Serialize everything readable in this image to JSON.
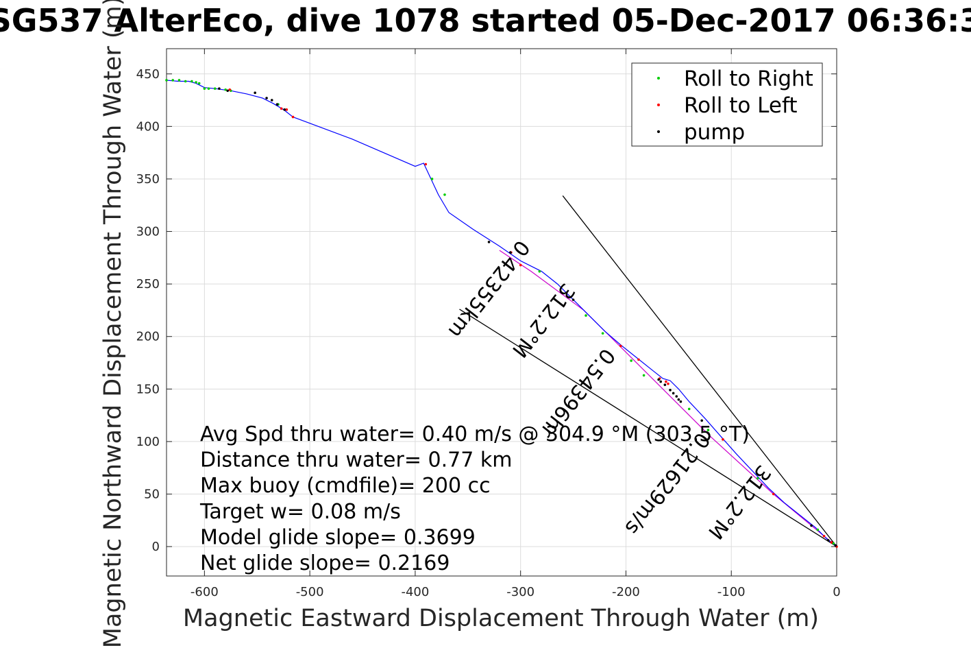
{
  "chart_data": {
    "type": "scatter",
    "title": "SG537 AlterEco, dive 1078 started 05-Dec-2017 06:36:3",
    "xlabel": "Magnetic Eastward Displacement Through Water (m)",
    "ylabel": "Magnetic Northward Displacement Through Water (m)",
    "xlim": [
      -636,
      0
    ],
    "ylim": [
      -28,
      474
    ],
    "xticks": [
      -600,
      -500,
      -400,
      -300,
      -200,
      -100,
      0
    ],
    "yticks": [
      0,
      50,
      100,
      150,
      200,
      250,
      300,
      350,
      400,
      450
    ],
    "xtick_labels": [
      "-600",
      "-500",
      "-400",
      "-300",
      "-200",
      "-100",
      "0"
    ],
    "ytick_labels": [
      "0",
      "50",
      "100",
      "150",
      "200",
      "250",
      "300",
      "350",
      "400",
      "450"
    ],
    "grid": true,
    "legend_position": "top-right",
    "legend": [
      "Roll to Right",
      "Roll to Left",
      "pump"
    ],
    "colors": {
      "track": "#0000ff",
      "roll_right": "#00cc00",
      "roll_left": "#ff0000",
      "pump": "#000000",
      "model_track": "#cc00cc"
    },
    "track": {
      "x": [
        0,
        -10,
        -20,
        -35,
        -50,
        -65,
        -80,
        -95,
        -110,
        -125,
        -140,
        -150,
        -158,
        -165,
        -175,
        -190,
        -205,
        -220,
        -235,
        -250,
        -265,
        -280,
        -300,
        -320,
        -345,
        -368,
        -378,
        -385,
        -392,
        -400,
        -460,
        -516,
        -525,
        -535,
        -545,
        -560,
        -575,
        -590,
        -600,
        -608,
        -615,
        -625,
        -636
      ],
      "y": [
        0,
        8,
        18,
        30,
        42,
        56,
        72,
        88,
        105,
        122,
        138,
        150,
        158,
        160,
        168,
        180,
        192,
        205,
        220,
        235,
        250,
        262,
        272,
        286,
        302,
        318,
        335,
        350,
        365,
        362,
        388,
        409,
        416,
        422,
        427,
        431,
        434,
        436,
        437,
        441,
        443,
        443,
        444
      ]
    },
    "model_track": {
      "x": [
        0,
        -60,
        -120,
        -165,
        -200,
        -240,
        -290,
        -320
      ],
      "y": [
        0,
        50,
        105,
        150,
        185,
        225,
        262,
        282
      ]
    },
    "series": [
      {
        "name": "Roll to Right",
        "x": [
          -3,
          -18,
          -75,
          -122,
          -140,
          -183,
          -195,
          -222,
          -238,
          -282,
          -372,
          -384,
          -530,
          -575,
          -580,
          -590,
          -596,
          -600,
          -605,
          -608,
          -612,
          -618,
          -624,
          -630,
          -636
        ],
        "y": [
          3,
          16,
          65,
          111,
          131,
          163,
          177,
          203,
          220,
          262,
          335,
          350,
          421,
          434,
          435,
          436,
          436,
          436,
          441,
          442,
          443,
          443,
          444,
          444,
          444
        ]
      },
      {
        "name": "Roll to Left",
        "x": [
          0,
          -5,
          -12,
          -60,
          -108,
          -160,
          -162,
          -168,
          -188,
          -205,
          -300,
          -309,
          -390,
          -516,
          -522,
          -527,
          -576
        ],
        "y": [
          0,
          4,
          10,
          50,
          102,
          155,
          157,
          160,
          178,
          191,
          268,
          280,
          364,
          409,
          416,
          417,
          435
        ],
        "style": "dots"
      },
      {
        "name": "pump",
        "x": [
          -1,
          -8,
          -24,
          -128,
          -148,
          -150,
          -152,
          -155,
          -158,
          -163,
          -167,
          -169,
          -250,
          -330,
          -524,
          -531,
          -536,
          -541,
          -552,
          -578,
          -586
        ],
        "y": [
          1,
          6,
          20,
          120,
          138,
          140,
          143,
          146,
          149,
          154,
          157,
          159,
          235,
          290,
          416,
          421,
          425,
          427,
          432,
          434,
          436
        ]
      }
    ],
    "reference_lines": [
      {
        "x": [
          0,
          -260
        ],
        "y": [
          0,
          334
        ]
      },
      {
        "x": [
          0,
          -358
        ],
        "y": [
          0,
          226
        ]
      }
    ],
    "rotated_labels": [
      {
        "text": "312.2°M",
        "x": -260,
        "y": 253,
        "angle_deg": 128
      },
      {
        "text": "0.42355km",
        "x": -160,
        "y": 142,
        "angle_deg": 128
      },
      {
        "text": "0.54396hr",
        "x": -160,
        "y": 142,
        "angle_deg": 128
      },
      {
        "text": "0.21629m/s",
        "x": -60,
        "y": 65,
        "angle_deg": 128
      },
      {
        "text": "312.2°M",
        "x": -38,
        "y": 62,
        "angle_deg": 128
      }
    ],
    "text_box": [
      "Avg Spd thru water=  0.40 m/s @ 304.9 °M (303.5 °T)",
      "Distance thru water=  0.77 km",
      "Max buoy (cmdfile)= 200 cc",
      "Target w= 0.08 m/s",
      "Model glide slope= 0.3699",
      "Net glide slope= 0.2169"
    ]
  }
}
